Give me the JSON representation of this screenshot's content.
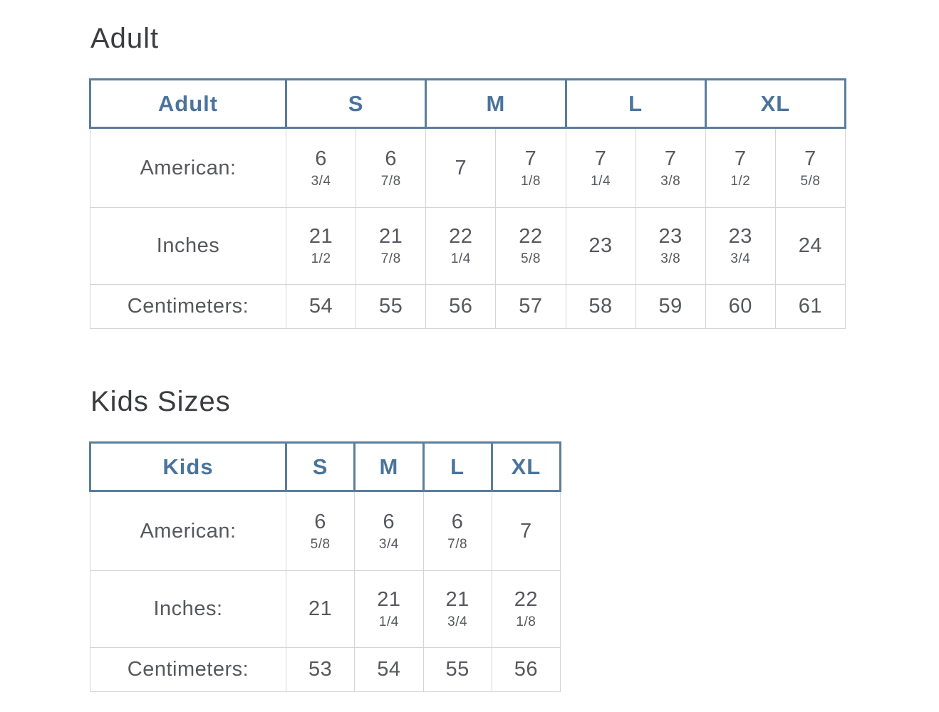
{
  "colors": {
    "header_border_blue": "#5b7e9b",
    "header_text_blue": "#4b749c",
    "body_text_gray": "#56585c",
    "heading_text": "#3a3c40",
    "cell_border_gray": "#d4d4d4",
    "background": "#ffffff"
  },
  "adult_section": {
    "heading": "Adult",
    "table": {
      "corner_label": "Adult",
      "size_headers": [
        {
          "label": "S"
        },
        {
          "label": "M"
        },
        {
          "label": "L"
        },
        {
          "label": "XL"
        }
      ],
      "rows": [
        {
          "label": "American:",
          "values": [
            {
              "whole": "6",
              "frac": "3/4"
            },
            {
              "whole": "6",
              "frac": "7/8"
            },
            {
              "whole": "7"
            },
            {
              "whole": "7",
              "frac": "1/8"
            },
            {
              "whole": "7",
              "frac": "1/4"
            },
            {
              "whole": "7",
              "frac": "3/8"
            },
            {
              "whole": "7",
              "frac": "1/2"
            },
            {
              "whole": "7",
              "frac": "5/8"
            }
          ]
        },
        {
          "label": "Inches",
          "values": [
            {
              "whole": "21",
              "frac": "1/2"
            },
            {
              "whole": "21",
              "frac": "7/8"
            },
            {
              "whole": "22",
              "frac": "1/4"
            },
            {
              "whole": "22",
              "frac": "5/8"
            },
            {
              "whole": "23"
            },
            {
              "whole": "23",
              "frac": "3/8"
            },
            {
              "whole": "23",
              "frac": "3/4"
            },
            {
              "whole": "24"
            }
          ]
        },
        {
          "label": "Centimeters:",
          "values": [
            {
              "whole": "54"
            },
            {
              "whole": "55"
            },
            {
              "whole": "56"
            },
            {
              "whole": "57"
            },
            {
              "whole": "58"
            },
            {
              "whole": "59"
            },
            {
              "whole": "60"
            },
            {
              "whole": "61"
            }
          ]
        }
      ]
    }
  },
  "kids_section": {
    "heading": "Kids Sizes",
    "table": {
      "corner_label": "Kids",
      "size_headers": [
        {
          "label": "S"
        },
        {
          "label": "M"
        },
        {
          "label": "L"
        },
        {
          "label": "XL"
        }
      ],
      "rows": [
        {
          "label": "American:",
          "values": [
            {
              "whole": "6",
              "frac": "5/8"
            },
            {
              "whole": "6",
              "frac": "3/4"
            },
            {
              "whole": "6",
              "frac": "7/8"
            },
            {
              "whole": "7"
            }
          ]
        },
        {
          "label": "Inches:",
          "values": [
            {
              "whole": "21"
            },
            {
              "whole": "21",
              "frac": "1/4"
            },
            {
              "whole": "21",
              "frac": "3/4"
            },
            {
              "whole": "22",
              "frac": "1/8"
            }
          ]
        },
        {
          "label": "Centimeters:",
          "values": [
            {
              "whole": "53"
            },
            {
              "whole": "54"
            },
            {
              "whole": "55"
            },
            {
              "whole": "56"
            }
          ]
        }
      ]
    }
  }
}
